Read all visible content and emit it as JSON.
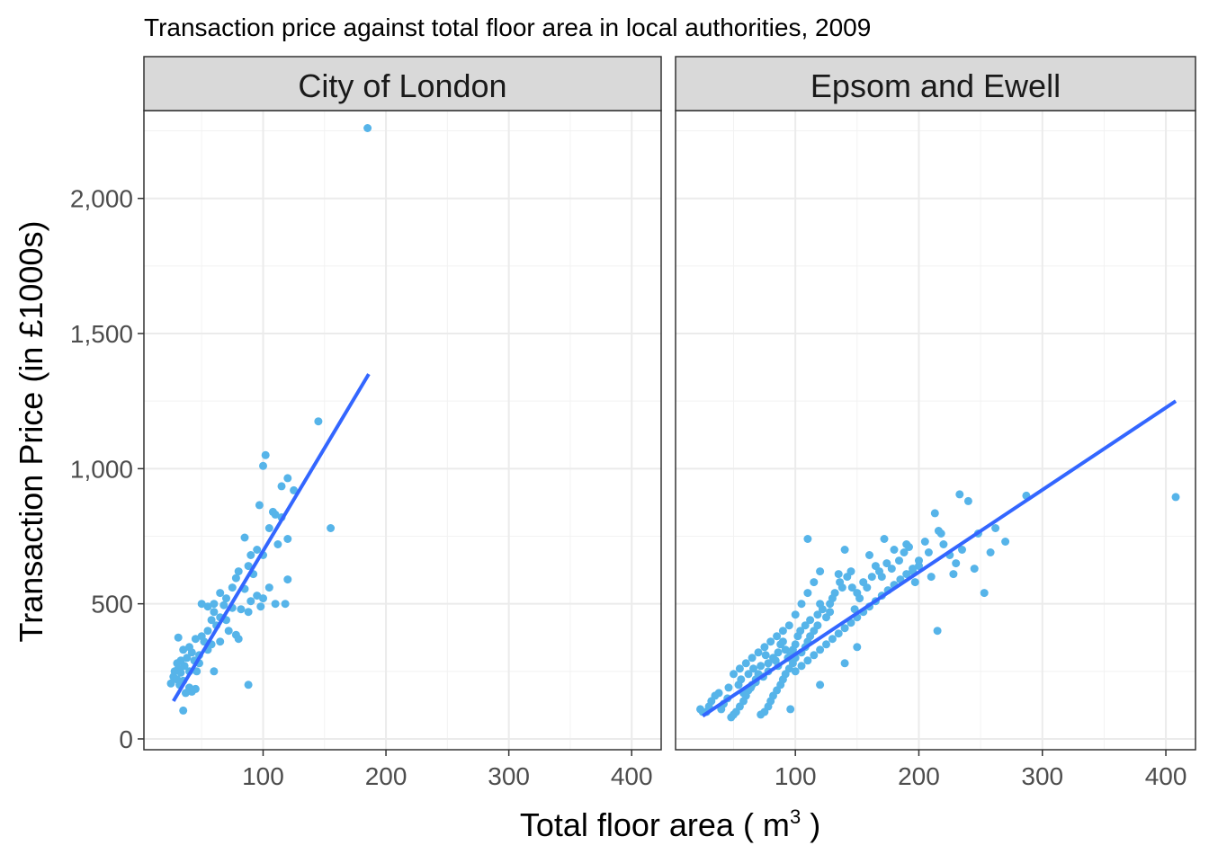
{
  "chart_data": {
    "type": "scatter",
    "title": "Transaction price against total floor area in local authorities, 2009",
    "xlabel": {
      "prefix": "Total floor area ( m",
      "superscript": "3",
      "suffix": " )"
    },
    "ylabel": "Transaction Price (in £1000s)",
    "xlim": [
      3,
      424
    ],
    "ylim": [
      -40,
      2325
    ],
    "x_ticks": [
      100,
      200,
      300,
      400
    ],
    "x_tick_labels": [
      "100",
      "200",
      "300",
      "400"
    ],
    "y_ticks": [
      0,
      500,
      1000,
      1500,
      2000
    ],
    "y_tick_labels": [
      "0",
      "500",
      "1,000",
      "1,500",
      "2,000"
    ],
    "grid": true,
    "colors": {
      "points": "#56B4E9",
      "fit_line": "#3366FF"
    },
    "panels": [
      {
        "name": "City of London",
        "fit_line": {
          "x": [
            27,
            186
          ],
          "y": [
            140,
            1350
          ]
        },
        "points": [
          [
            185,
            2260
          ],
          [
            145,
            1175
          ],
          [
            155,
            780
          ],
          [
            102,
            1050
          ],
          [
            100,
            1010
          ],
          [
            120,
            965
          ],
          [
            115,
            935
          ],
          [
            125,
            920
          ],
          [
            97,
            865
          ],
          [
            108,
            840
          ],
          [
            115,
            820
          ],
          [
            110,
            830
          ],
          [
            105,
            780
          ],
          [
            120,
            740
          ],
          [
            112,
            720
          ],
          [
            85,
            745
          ],
          [
            95,
            700
          ],
          [
            90,
            680
          ],
          [
            100,
            680
          ],
          [
            88,
            640
          ],
          [
            80,
            620
          ],
          [
            92,
            610
          ],
          [
            78,
            595
          ],
          [
            75,
            560
          ],
          [
            85,
            555
          ],
          [
            120,
            590
          ],
          [
            105,
            560
          ],
          [
            95,
            530
          ],
          [
            100,
            520
          ],
          [
            90,
            510
          ],
          [
            65,
            540
          ],
          [
            70,
            520
          ],
          [
            60,
            500
          ],
          [
            68,
            495
          ],
          [
            75,
            485
          ],
          [
            82,
            480
          ],
          [
            98,
            490
          ],
          [
            110,
            500
          ],
          [
            118,
            500
          ],
          [
            88,
            470
          ],
          [
            50,
            500
          ],
          [
            55,
            490
          ],
          [
            60,
            470
          ],
          [
            65,
            450
          ],
          [
            70,
            440
          ],
          [
            58,
            440
          ],
          [
            62,
            420
          ],
          [
            72,
            400
          ],
          [
            78,
            385
          ],
          [
            80,
            370
          ],
          [
            55,
            400
          ],
          [
            50,
            380
          ],
          [
            45,
            370
          ],
          [
            52,
            360
          ],
          [
            58,
            350
          ],
          [
            65,
            360
          ],
          [
            40,
            340
          ],
          [
            35,
            330
          ],
          [
            42,
            320
          ],
          [
            48,
            310
          ],
          [
            38,
            300
          ],
          [
            33,
            290
          ],
          [
            44,
            290
          ],
          [
            30,
            280
          ],
          [
            36,
            270
          ],
          [
            31,
            260
          ],
          [
            28,
            250
          ],
          [
            33,
            245
          ],
          [
            40,
            250
          ],
          [
            46,
            250
          ],
          [
            60,
            250
          ],
          [
            27,
            230
          ],
          [
            30,
            220
          ],
          [
            35,
            215
          ],
          [
            25,
            205
          ],
          [
            32,
            200
          ],
          [
            40,
            190
          ],
          [
            45,
            185
          ],
          [
            42,
            175
          ],
          [
            37,
            170
          ],
          [
            88,
            200
          ],
          [
            35,
            105
          ],
          [
            31,
            375
          ],
          [
            55,
            330
          ],
          [
            48,
            280
          ]
        ]
      },
      {
        "name": "Epsom and Ewell",
        "fit_line": {
          "x": [
            25,
            408
          ],
          "y": [
            85,
            1250
          ]
        },
        "points": [
          [
            408,
            895
          ],
          [
            287,
            900
          ],
          [
            233,
            905
          ],
          [
            240,
            880
          ],
          [
            262,
            780
          ],
          [
            270,
            730
          ],
          [
            235,
            700
          ],
          [
            245,
            630
          ],
          [
            228,
            610
          ],
          [
            253,
            540
          ],
          [
            215,
            400
          ],
          [
            218,
            760
          ],
          [
            213,
            835
          ],
          [
            216,
            770
          ],
          [
            205,
            730
          ],
          [
            208,
            690
          ],
          [
            200,
            660
          ],
          [
            195,
            620
          ],
          [
            197,
            580
          ],
          [
            190,
            720
          ],
          [
            180,
            700
          ],
          [
            172,
            740
          ],
          [
            178,
            630
          ],
          [
            170,
            600
          ],
          [
            165,
            640
          ],
          [
            160,
            680
          ],
          [
            158,
            560
          ],
          [
            152,
            520
          ],
          [
            148,
            480
          ],
          [
            145,
            620
          ],
          [
            140,
            700
          ],
          [
            135,
            610
          ],
          [
            138,
            560
          ],
          [
            130,
            520
          ],
          [
            128,
            470
          ],
          [
            125,
            450
          ],
          [
            120,
            500
          ],
          [
            118,
            420
          ],
          [
            115,
            400
          ],
          [
            112,
            380
          ],
          [
            110,
            360
          ],
          [
            108,
            340
          ],
          [
            105,
            320
          ],
          [
            100,
            300
          ],
          [
            98,
            280
          ],
          [
            95,
            260
          ],
          [
            92,
            240
          ],
          [
            90,
            220
          ],
          [
            88,
            200
          ],
          [
            85,
            180
          ],
          [
            82,
            160
          ],
          [
            80,
            140
          ],
          [
            78,
            120
          ],
          [
            75,
            100
          ],
          [
            72,
            90
          ],
          [
            70,
            240
          ],
          [
            68,
            220
          ],
          [
            65,
            200
          ],
          [
            62,
            180
          ],
          [
            60,
            160
          ],
          [
            58,
            140
          ],
          [
            55,
            120
          ],
          [
            52,
            100
          ],
          [
            50,
            90
          ],
          [
            48,
            80
          ],
          [
            45,
            150
          ],
          [
            42,
            130
          ],
          [
            40,
            110
          ],
          [
            38,
            170
          ],
          [
            35,
            160
          ],
          [
            32,
            140
          ],
          [
            30,
            120
          ],
          [
            28,
            100
          ],
          [
            25,
            100
          ],
          [
            23,
            110
          ],
          [
            100,
            460
          ],
          [
            105,
            500
          ],
          [
            110,
            540
          ],
          [
            115,
            580
          ],
          [
            120,
            620
          ],
          [
            95,
            420
          ],
          [
            90,
            400
          ],
          [
            85,
            380
          ],
          [
            80,
            360
          ],
          [
            75,
            340
          ],
          [
            70,
            320
          ],
          [
            65,
            300
          ],
          [
            60,
            280
          ],
          [
            55,
            260
          ],
          [
            50,
            240
          ],
          [
            100,
            250
          ],
          [
            105,
            270
          ],
          [
            110,
            290
          ],
          [
            115,
            310
          ],
          [
            120,
            330
          ],
          [
            125,
            350
          ],
          [
            130,
            370
          ],
          [
            135,
            390
          ],
          [
            140,
            410
          ],
          [
            145,
            430
          ],
          [
            150,
            450
          ],
          [
            155,
            470
          ],
          [
            160,
            490
          ],
          [
            165,
            510
          ],
          [
            170,
            530
          ],
          [
            175,
            550
          ],
          [
            180,
            570
          ],
          [
            185,
            590
          ],
          [
            190,
            610
          ],
          [
            195,
            630
          ],
          [
            88,
            350
          ],
          [
            92,
            330
          ],
          [
            96,
            310
          ],
          [
            84,
            290
          ],
          [
            86,
            270
          ],
          [
            78,
            250
          ],
          [
            74,
            230
          ],
          [
            68,
            210
          ],
          [
            64,
            190
          ],
          [
            58,
            170
          ],
          [
            102,
            380
          ],
          [
            108,
            420
          ],
          [
            112,
            440
          ],
          [
            118,
            460
          ],
          [
            122,
            480
          ],
          [
            128,
            500
          ],
          [
            132,
            540
          ],
          [
            136,
            580
          ],
          [
            142,
            600
          ],
          [
            146,
            560
          ],
          [
            150,
            540
          ],
          [
            155,
            580
          ],
          [
            162,
            600
          ],
          [
            168,
            620
          ],
          [
            174,
            650
          ],
          [
            184,
            660
          ],
          [
            188,
            690
          ],
          [
            192,
            710
          ],
          [
            200,
            640
          ],
          [
            210,
            600
          ],
          [
            225,
            680
          ],
          [
            230,
            650
          ],
          [
            220,
            720
          ],
          [
            248,
            760
          ],
          [
            258,
            690
          ],
          [
            96,
            110
          ],
          [
            150,
            340
          ],
          [
            110,
            740
          ],
          [
            120,
            200
          ],
          [
            140,
            280
          ],
          [
            100,
            350
          ],
          [
            104,
            400
          ],
          [
            98,
            330
          ],
          [
            94,
            300
          ],
          [
            90,
            360
          ],
          [
            86,
            320
          ],
          [
            82,
            300
          ],
          [
            78,
            280
          ],
          [
            76,
            310
          ],
          [
            72,
            270
          ],
          [
            66,
            260
          ],
          [
            62,
            240
          ],
          [
            56,
            220
          ],
          [
            54,
            200
          ],
          [
            46,
            190
          ]
        ]
      }
    ]
  }
}
